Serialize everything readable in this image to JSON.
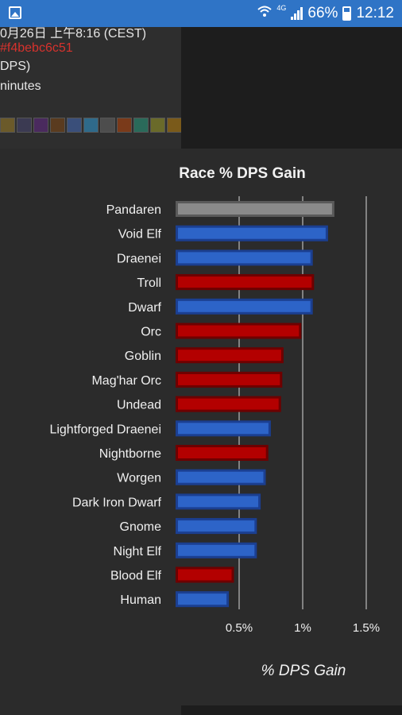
{
  "status_bar": {
    "network": "4G",
    "battery": "66%",
    "time": "12:12",
    "icons": [
      "gallery-icon",
      "wifi-icon",
      "signal-icon",
      "battery-charging-icon"
    ]
  },
  "header": {
    "date_line": "0月26日 上午8:16 (CEST)",
    "hash_line": "#f4bebc6c51",
    "dps_line": " DPS)",
    "minutes_line": "ninutes",
    "talent_icon_count": 11
  },
  "chart_data": {
    "type": "bar",
    "orientation": "horizontal",
    "title": "Race % DPS Gain",
    "xlabel": "% DPS Gain",
    "ylabel": "",
    "xlim": [
      0,
      1.7
    ],
    "xticks": [
      0.5,
      1,
      1.5
    ],
    "xtick_labels": [
      "0.5%",
      "1%",
      "1.5%"
    ],
    "grid": true,
    "categories": [
      "Pandaren",
      "Void Elf",
      "Draenei",
      "Troll",
      "Dwarf",
      "Orc",
      "Goblin",
      "Mag'har Orc",
      "Undead",
      "Lightforged Draenei",
      "Nightborne",
      "Worgen",
      "Dark Iron Dwarf",
      "Gnome",
      "Night Elf",
      "Blood Elf",
      "Human"
    ],
    "values": [
      1.24,
      1.19,
      1.07,
      1.08,
      1.07,
      0.98,
      0.84,
      0.83,
      0.82,
      0.74,
      0.72,
      0.7,
      0.66,
      0.63,
      0.63,
      0.45,
      0.41
    ],
    "factions": [
      "neutral",
      "alliance",
      "alliance",
      "horde",
      "alliance",
      "horde",
      "horde",
      "horde",
      "horde",
      "alliance",
      "horde",
      "alliance",
      "alliance",
      "alliance",
      "alliance",
      "horde",
      "alliance"
    ],
    "colors": {
      "alliance": {
        "fill": "#2d64c8",
        "stroke": "#1b3f91"
      },
      "horde": {
        "fill": "#b30000",
        "stroke": "#6e0000"
      },
      "neutral": {
        "fill": "#8a8a8a",
        "stroke": "#5a5a5a"
      }
    }
  }
}
